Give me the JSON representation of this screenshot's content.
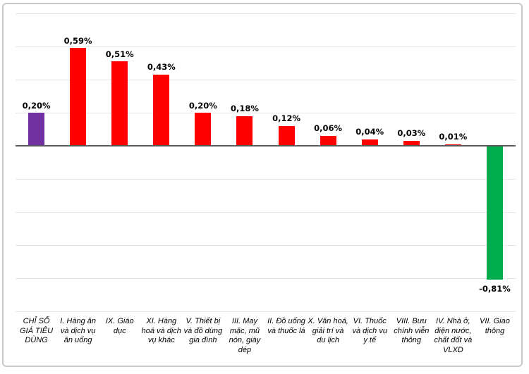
{
  "chart_data": {
    "type": "bar",
    "title": "",
    "xlabel": "",
    "ylabel": "",
    "unit": "%",
    "categories": [
      "CHỈ SỐ GIÁ TIÊU DÙNG",
      "I. Hàng ăn và dịch vụ ăn uống",
      "IX. Giáo dục",
      "XI. Hàng hoá và dịch vụ khác",
      "V. Thiết bị và đồ dùng gia đình",
      "III. May mặc, mũ nón, giày dép",
      "II. Đồ uống và thuốc lá",
      "X. Văn hoá, giải trí và du lịch",
      "VI. Thuốc và dịch vụ y tế",
      "VIII. Bưu chính viễn thông",
      "IV. Nhà ở, điện nước, chất đốt và VLXD",
      "VII. Giao thông"
    ],
    "values": [
      0.2,
      0.59,
      0.51,
      0.43,
      0.2,
      0.18,
      0.12,
      0.06,
      0.04,
      0.03,
      0.01,
      -0.81
    ],
    "value_labels": [
      "0,20%",
      "0,59%",
      "0,51%",
      "0,43%",
      "0,20%",
      "0,18%",
      "0,12%",
      "0,06%",
      "0,04%",
      "0,03%",
      "0,01%",
      "-0,81%"
    ],
    "bar_colors": [
      "#7030A0",
      "#FF0000",
      "#FF0000",
      "#FF0000",
      "#FF0000",
      "#FF0000",
      "#FF0000",
      "#FF0000",
      "#FF0000",
      "#FF0000",
      "#FF0000",
      "#00AC4E"
    ],
    "ylim": [
      -1.0,
      0.8
    ],
    "grid_step": 0.2,
    "grid": true,
    "legend": false,
    "colors": {
      "cpi_total_bar": "#7030A0",
      "increase_bar": "#FF0000",
      "decrease_bar": "#00AC4E",
      "axis_line": "#595959",
      "gridline": "#E6E6E6",
      "frame_border": "#C9C9C9",
      "label_text": "#000000"
    }
  }
}
